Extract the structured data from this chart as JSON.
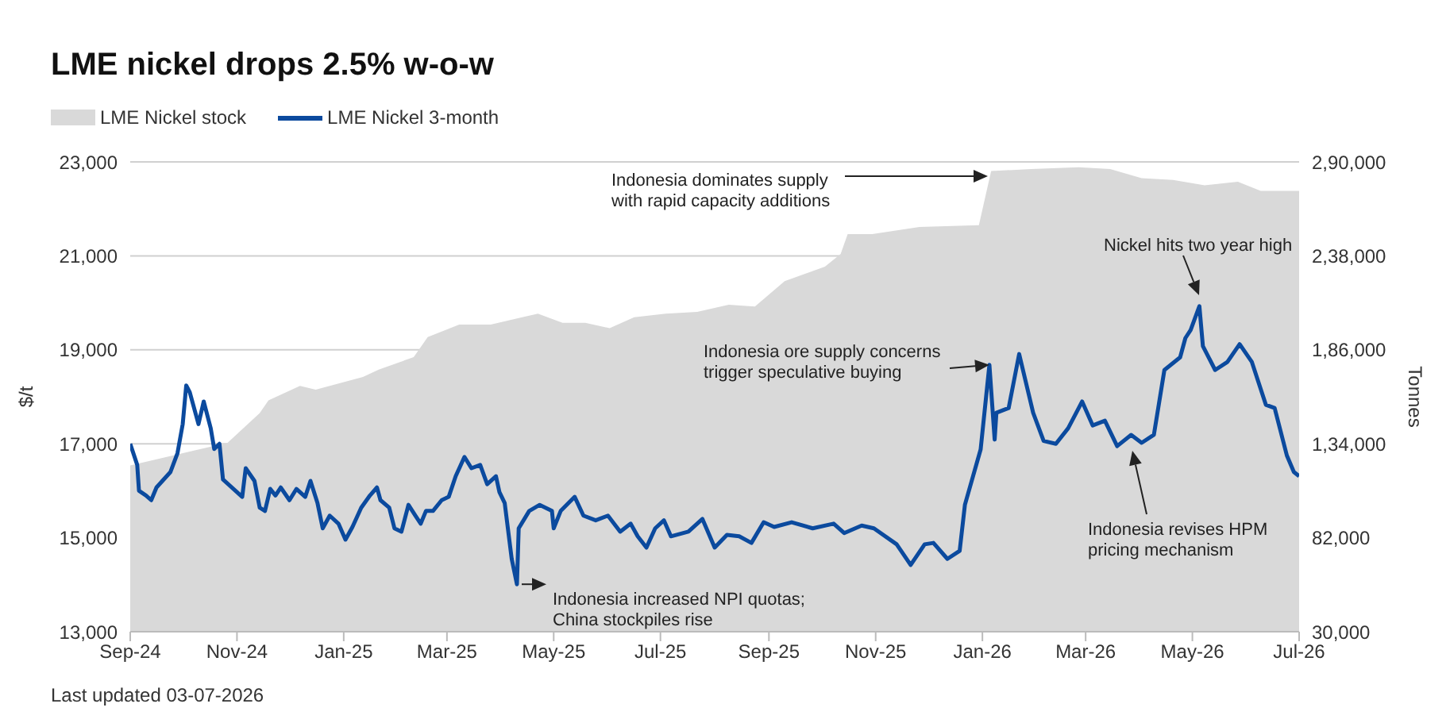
{
  "chart_data": {
    "type": "line",
    "title": "LME nickel drops 2.5% w-o-w",
    "ylabel": "$/t",
    "y2label": "Tonnes",
    "xlim": [
      "2024-09-01",
      "2026-07-01"
    ],
    "xticks": [
      {
        "value": "2024-09-01",
        "label": "Sep-24"
      },
      {
        "value": "2024-11-01",
        "label": "Nov-24"
      },
      {
        "value": "2025-01-01",
        "label": "Jan-25"
      },
      {
        "value": "2025-03-01",
        "label": "Mar-25"
      },
      {
        "value": "2025-05-01",
        "label": "May-25"
      },
      {
        "value": "2025-07-01",
        "label": "Jul-25"
      },
      {
        "value": "2025-09-01",
        "label": "Sep-25"
      },
      {
        "value": "2025-11-01",
        "label": "Nov-25"
      },
      {
        "value": "2026-01-01",
        "label": "Jan-26"
      },
      {
        "value": "2026-03-01",
        "label": "Mar-26"
      },
      {
        "value": "2026-05-01",
        "label": "May-26"
      },
      {
        "value": "2026-07-01",
        "label": "Jul-26"
      }
    ],
    "ylim": [
      13000,
      23000
    ],
    "yticks": [
      {
        "value": 13000,
        "label": "13,000"
      },
      {
        "value": 15000,
        "label": "15,000"
      },
      {
        "value": 17000,
        "label": "17,000"
      },
      {
        "value": 19000,
        "label": "19,000"
      },
      {
        "value": 21000,
        "label": "21,000"
      },
      {
        "value": 23000,
        "label": "23,000"
      }
    ],
    "y2lim": [
      30000,
      290000
    ],
    "y2ticks": [
      {
        "value": 30000,
        "label": "30,000"
      },
      {
        "value": 82000,
        "label": "82,000"
      },
      {
        "value": 134000,
        "label": "1,34,000"
      },
      {
        "value": 186000,
        "label": "1,86,000"
      },
      {
        "value": 238000,
        "label": "2,38,000"
      },
      {
        "value": 290000,
        "label": "2,90,000"
      }
    ],
    "grid": "y",
    "legend": "top left",
    "series": [
      {
        "name": "LME Nickel stock",
        "type": "area",
        "axis": "y2",
        "color": "#d9d9d9",
        "x": [
          "2024-09-01",
          "2024-10-24",
          "2024-10-26",
          "2024-11-14",
          "2024-11-19",
          "2024-12-07",
          "2024-12-16",
          "2025-01-12",
          "2025-01-21",
          "2025-02-10",
          "2025-02-18",
          "2025-03-08",
          "2025-03-26",
          "2025-04-13",
          "2025-04-22",
          "2025-05-06",
          "2025-05-19",
          "2025-06-02",
          "2025-06-16",
          "2025-07-04",
          "2025-07-22",
          "2025-08-09",
          "2025-08-24",
          "2025-09-10",
          "2025-10-03",
          "2025-10-12",
          "2025-10-16",
          "2025-10-30",
          "2025-11-26",
          "2025-12-30",
          "2026-01-06",
          "2026-01-29",
          "2026-02-25",
          "2026-03-15",
          "2026-04-02",
          "2026-04-20",
          "2026-05-08",
          "2026-05-27",
          "2026-06-09",
          "2026-07-01"
        ],
        "values": [
          122000,
          134000,
          134000,
          151000,
          158000,
          166000,
          164000,
          171000,
          175000,
          182000,
          193000,
          200000,
          200000,
          204000,
          206000,
          201000,
          201000,
          198000,
          204000,
          206000,
          207000,
          211000,
          210000,
          224000,
          232000,
          239000,
          250000,
          250000,
          254000,
          255000,
          285000,
          286000,
          287000,
          286000,
          281000,
          280000,
          277000,
          279000,
          274000,
          274000
        ]
      },
      {
        "name": "LME Nickel 3-month",
        "color": "#0b4a9e",
        "x": [
          "2024-09-01",
          "2024-09-05",
          "2024-09-06",
          "2024-09-10",
          "2024-09-13",
          "2024-09-16",
          "2024-09-24",
          "2024-09-28",
          "2024-10-01",
          "2024-10-03",
          "2024-10-05",
          "2024-10-10",
          "2024-10-13",
          "2024-10-17",
          "2024-10-19",
          "2024-10-22",
          "2024-10-24",
          "2024-10-30",
          "2024-11-04",
          "2024-11-06",
          "2024-11-11",
          "2024-11-14",
          "2024-11-17",
          "2024-11-20",
          "2024-11-23",
          "2024-11-26",
          "2024-12-01",
          "2024-12-05",
          "2024-12-10",
          "2024-12-13",
          "2024-12-17",
          "2024-12-20",
          "2024-12-24",
          "2024-12-29",
          "2025-01-02",
          "2025-01-06",
          "2025-01-11",
          "2025-01-16",
          "2025-01-20",
          "2025-01-22",
          "2025-01-27",
          "2025-01-30",
          "2025-02-03",
          "2025-02-07",
          "2025-02-11",
          "2025-02-14",
          "2025-02-17",
          "2025-02-21",
          "2025-02-26",
          "2025-03-02",
          "2025-03-06",
          "2025-03-11",
          "2025-03-15",
          "2025-03-20",
          "2025-03-24",
          "2025-03-29",
          "2025-03-31",
          "2025-04-03",
          "2025-04-07",
          "2025-04-10",
          "2025-04-11",
          "2025-04-17",
          "2025-04-23",
          "2025-04-30",
          "2025-05-01",
          "2025-05-05",
          "2025-05-13",
          "2025-05-18",
          "2025-05-25",
          "2025-06-01",
          "2025-06-08",
          "2025-06-14",
          "2025-06-18",
          "2025-06-23",
          "2025-06-28",
          "2025-07-03",
          "2025-07-07",
          "2025-07-17",
          "2025-07-25",
          "2025-08-01",
          "2025-08-08",
          "2025-08-15",
          "2025-08-22",
          "2025-08-29",
          "2025-09-04",
          "2025-09-14",
          "2025-09-26",
          "2025-10-08",
          "2025-10-14",
          "2025-10-24",
          "2025-10-31",
          "2025-11-13",
          "2025-11-21",
          "2025-11-29",
          "2025-12-04",
          "2025-12-12",
          "2025-12-19",
          "2025-12-22",
          "2025-12-31",
          "2026-01-05",
          "2026-01-08",
          "2026-01-09",
          "2026-01-16",
          "2026-01-22",
          "2026-01-30",
          "2026-02-05",
          "2026-02-12",
          "2026-02-19",
          "2026-02-27",
          "2026-03-05",
          "2026-03-12",
          "2026-03-19",
          "2026-03-27",
          "2026-04-02",
          "2026-04-09",
          "2026-04-15",
          "2026-04-24",
          "2026-04-27",
          "2026-04-30",
          "2026-05-05",
          "2026-05-07",
          "2026-05-14",
          "2026-05-21",
          "2026-05-28",
          "2026-06-04",
          "2026-06-12",
          "2026-06-17",
          "2026-06-24",
          "2026-06-28",
          "2026-07-01"
        ],
        "values": [
          17000,
          16550,
          16000,
          15900,
          15800,
          16070,
          16400,
          16800,
          17420,
          18240,
          18100,
          17420,
          17900,
          17330,
          16890,
          17000,
          16240,
          16040,
          15870,
          16480,
          16210,
          15640,
          15570,
          16040,
          15900,
          16070,
          15800,
          16040,
          15870,
          16210,
          15740,
          15200,
          15470,
          15300,
          14960,
          15230,
          15640,
          15900,
          16070,
          15800,
          15640,
          15200,
          15130,
          15700,
          15470,
          15300,
          15570,
          15570,
          15800,
          15870,
          16310,
          16720,
          16480,
          16550,
          16140,
          16310,
          15970,
          15740,
          14550,
          14010,
          15200,
          15570,
          15700,
          15570,
          15200,
          15570,
          15870,
          15470,
          15370,
          15470,
          15130,
          15300,
          15030,
          14790,
          15200,
          15370,
          15030,
          15130,
          15400,
          14790,
          15060,
          15030,
          14890,
          15330,
          15230,
          15330,
          15200,
          15300,
          15100,
          15260,
          15200,
          14860,
          14420,
          14860,
          14890,
          14550,
          14720,
          15700,
          16880,
          18680,
          17090,
          17660,
          17760,
          18910,
          17660,
          17060,
          17000,
          17330,
          17900,
          17390,
          17490,
          16950,
          17190,
          17020,
          17190,
          18570,
          18840,
          19250,
          19420,
          19930,
          19080,
          18570,
          18740,
          19120,
          18740,
          17830,
          17760,
          16750,
          16400,
          16310
        ]
      }
    ],
    "annotations": [
      "Indonesia dominates supply\nwith rapid capacity additions",
      {
        "text": "Indonesia increased NPI quotas;\nChina stockpiles rise",
        "x": "2025-04-10",
        "y": 14010
      },
      {
        "text": "Indonesia ore supply concerns\ntrigger speculative buying",
        "x": "2026-01-05",
        "y": 18680
      },
      "Nickel hits two year high",
      "Indonesia revises HPM\npricing mechanism",
      "Last updated 03-07-2026"
    ]
  }
}
